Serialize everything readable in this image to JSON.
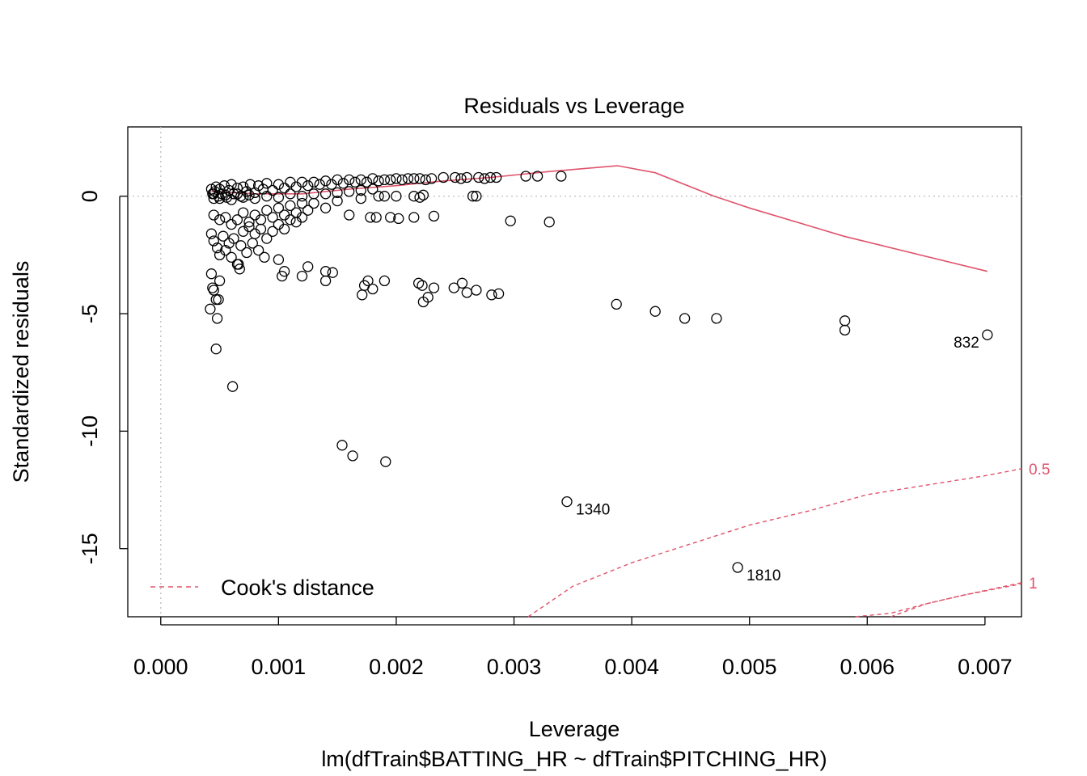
{
  "chart_data": {
    "type": "scatter",
    "title": "Residuals vs Leverage",
    "xlabel": "Leverage",
    "sublabel": "lm(dfTrain$BATTING_HR ~ dfTrain$PITCHING_HR)",
    "ylabel": "Standardized residuals",
    "xlim": [
      -0.00028,
      0.00731
    ],
    "ylim": [
      -17.9,
      2.95
    ],
    "x_ticks": [
      0,
      0.001,
      0.002,
      0.003,
      0.004,
      0.005,
      0.006,
      0.007
    ],
    "x_tick_labels": [
      "0.000",
      "0.001",
      "0.002",
      "0.003",
      "0.004",
      "0.005",
      "0.006",
      "0.007"
    ],
    "y_ticks": [
      0,
      -5,
      -10,
      -15
    ],
    "y_tick_labels": [
      "0",
      "-5",
      "-10",
      "-15"
    ],
    "reference_lines": {
      "h": 0,
      "v": 0
    },
    "legend": {
      "label": "Cook's distance",
      "position": "bottom-left"
    },
    "colors": {
      "smooth": "#DF536B",
      "points": "#000000",
      "reference": "#BEBEBE"
    },
    "points": [
      [
        0.00043,
        0.3
      ],
      [
        0.00044,
        0.1
      ],
      [
        0.00045,
        -0.1
      ],
      [
        0.00046,
        0.2
      ],
      [
        0.00047,
        0.4
      ],
      [
        0.00049,
        0.0
      ],
      [
        0.0005,
        0.3
      ],
      [
        0.00052,
        0.1
      ],
      [
        0.00054,
        0.45
      ],
      [
        0.00056,
        -0.05
      ],
      [
        0.00058,
        0.25
      ],
      [
        0.0006,
        0.5
      ],
      [
        0.00062,
        0.1
      ],
      [
        0.00065,
        0.35
      ],
      [
        0.00068,
        0.0
      ],
      [
        0.0007,
        0.4
      ],
      [
        0.00073,
        0.2
      ],
      [
        0.00076,
        0.5
      ],
      [
        0.0008,
        0.15
      ],
      [
        0.00083,
        0.45
      ],
      [
        0.00087,
        0.3
      ],
      [
        0.0009,
        0.55
      ],
      [
        0.00095,
        0.25
      ],
      [
        0.001,
        0.5
      ],
      [
        0.00105,
        0.35
      ],
      [
        0.0011,
        0.6
      ],
      [
        0.00115,
        0.4
      ],
      [
        0.0012,
        0.6
      ],
      [
        0.00125,
        0.45
      ],
      [
        0.0013,
        0.6
      ],
      [
        0.00135,
        0.5
      ],
      [
        0.0014,
        0.65
      ],
      [
        0.00145,
        0.5
      ],
      [
        0.0015,
        0.7
      ],
      [
        0.00155,
        0.55
      ],
      [
        0.0016,
        0.7
      ],
      [
        0.00165,
        0.6
      ],
      [
        0.0017,
        0.7
      ],
      [
        0.00175,
        0.6
      ],
      [
        0.0018,
        0.75
      ],
      [
        0.00185,
        0.65
      ],
      [
        0.0019,
        0.7
      ],
      [
        0.00195,
        0.7
      ],
      [
        0.002,
        0.75
      ],
      [
        0.00205,
        0.7
      ],
      [
        0.0021,
        0.75
      ],
      [
        0.00215,
        0.75
      ],
      [
        0.0022,
        0.75
      ],
      [
        0.00225,
        0.7
      ],
      [
        0.0023,
        0.75
      ],
      [
        0.0024,
        0.8
      ],
      [
        0.0025,
        0.8
      ],
      [
        0.00255,
        0.75
      ],
      [
        0.0026,
        0.8
      ],
      [
        0.0027,
        0.8
      ],
      [
        0.00275,
        0.75
      ],
      [
        0.0028,
        0.8
      ],
      [
        0.00285,
        0.8
      ],
      [
        0.0031,
        0.85
      ],
      [
        0.0032,
        0.85
      ],
      [
        0.0034,
        0.85
      ],
      [
        0.00045,
        0.1
      ],
      [
        0.0005,
        -0.1
      ],
      [
        0.00055,
        0.05
      ],
      [
        0.0006,
        -0.15
      ],
      [
        0.00065,
        0.1
      ],
      [
        0.0007,
        -0.05
      ],
      [
        0.00075,
        0.05
      ],
      [
        0.0008,
        -0.1
      ],
      [
        0.0009,
        0.0
      ],
      [
        0.001,
        -0.05
      ],
      [
        0.0011,
        0.1
      ],
      [
        0.0012,
        0.0
      ],
      [
        0.0013,
        0.1
      ],
      [
        0.0014,
        0.1
      ],
      [
        0.0015,
        0.15
      ],
      [
        0.0016,
        0.2
      ],
      [
        0.0017,
        0.25
      ],
      [
        0.0018,
        0.3
      ],
      [
        0.00185,
        0.0
      ],
      [
        0.0019,
        0.0
      ],
      [
        0.002,
        0.0
      ],
      [
        0.00215,
        0.0
      ],
      [
        0.0022,
        -0.05
      ],
      [
        0.00223,
        0.05
      ],
      [
        0.00265,
        0.0
      ],
      [
        0.00268,
        0.0
      ],
      [
        0.00045,
        -0.8
      ],
      [
        0.0005,
        -1.0
      ],
      [
        0.00055,
        -0.9
      ],
      [
        0.0006,
        -1.2
      ],
      [
        0.00065,
        -1.0
      ],
      [
        0.0007,
        -0.7
      ],
      [
        0.00075,
        -1.1
      ],
      [
        0.0008,
        -0.8
      ],
      [
        0.00085,
        -1.0
      ],
      [
        0.0009,
        -0.6
      ],
      [
        0.00095,
        -0.9
      ],
      [
        0.001,
        -0.5
      ],
      [
        0.00105,
        -0.8
      ],
      [
        0.0011,
        -0.4
      ],
      [
        0.00115,
        -0.7
      ],
      [
        0.0012,
        -0.3
      ],
      [
        0.00125,
        -0.6
      ],
      [
        0.0013,
        -0.3
      ],
      [
        0.0014,
        -0.5
      ],
      [
        0.0015,
        -0.2
      ],
      [
        0.0016,
        -0.8
      ],
      [
        0.0017,
        -0.1
      ],
      [
        0.00178,
        -0.9
      ],
      [
        0.00183,
        -0.9
      ],
      [
        0.00195,
        -0.9
      ],
      [
        0.00202,
        -0.95
      ],
      [
        0.00215,
        -0.9
      ],
      [
        0.00232,
        -0.85
      ],
      [
        0.00297,
        -1.05
      ],
      [
        0.0033,
        -1.1
      ],
      [
        0.00043,
        -1.6
      ],
      [
        0.00045,
        -1.9
      ],
      [
        0.00048,
        -2.2
      ],
      [
        0.0005,
        -2.5
      ],
      [
        0.00053,
        -1.7
      ],
      [
        0.00055,
        -2.3
      ],
      [
        0.00058,
        -2.0
      ],
      [
        0.0006,
        -2.6
      ],
      [
        0.00062,
        -1.8
      ],
      [
        0.00065,
        -2.9
      ],
      [
        0.00068,
        -2.1
      ],
      [
        0.0007,
        -1.5
      ],
      [
        0.00073,
        -2.4
      ],
      [
        0.00075,
        -1.3
      ],
      [
        0.00078,
        -2.0
      ],
      [
        0.0008,
        -1.6
      ],
      [
        0.00083,
        -2.3
      ],
      [
        0.00085,
        -1.4
      ],
      [
        0.00088,
        -2.6
      ],
      [
        0.0009,
        -1.8
      ],
      [
        0.00095,
        -1.5
      ],
      [
        0.001,
        -1.2
      ],
      [
        0.00105,
        -1.4
      ],
      [
        0.0011,
        -1.0
      ],
      [
        0.00115,
        -1.1
      ],
      [
        0.0012,
        -0.9
      ],
      [
        0.00043,
        -3.3
      ],
      [
        0.00044,
        -3.9
      ],
      [
        0.00045,
        -4.0
      ],
      [
        0.00047,
        -4.4
      ],
      [
        0.00049,
        -4.4
      ],
      [
        0.0005,
        -3.6
      ],
      [
        0.00042,
        -4.8
      ],
      [
        0.00048,
        -5.2
      ],
      [
        0.00047,
        -6.5
      ],
      [
        0.00061,
        -8.1
      ],
      [
        0.00067,
        -3.1
      ],
      [
        0.00066,
        -2.9
      ],
      [
        0.001,
        -2.7
      ],
      [
        0.00103,
        -3.4
      ],
      [
        0.00105,
        -3.2
      ],
      [
        0.0012,
        -3.4
      ],
      [
        0.00125,
        -3.0
      ],
      [
        0.0014,
        -3.6
      ],
      [
        0.0014,
        -3.2
      ],
      [
        0.00146,
        -3.25
      ],
      [
        0.00171,
        -4.2
      ],
      [
        0.00173,
        -3.8
      ],
      [
        0.00176,
        -3.6
      ],
      [
        0.0018,
        -3.95
      ],
      [
        0.0019,
        -3.6
      ],
      [
        0.00219,
        -3.7
      ],
      [
        0.00222,
        -3.8
      ],
      [
        0.00223,
        -4.5
      ],
      [
        0.00227,
        -4.3
      ],
      [
        0.00232,
        -3.9
      ],
      [
        0.00249,
        -3.9
      ],
      [
        0.00256,
        -3.7
      ],
      [
        0.0026,
        -4.1
      ],
      [
        0.00268,
        -4.0
      ],
      [
        0.00281,
        -4.2
      ],
      [
        0.00287,
        -4.15
      ],
      [
        0.00387,
        -4.6
      ],
      [
        0.0042,
        -4.9
      ],
      [
        0.00445,
        -5.2
      ],
      [
        0.00472,
        -5.2
      ],
      [
        0.00581,
        -5.3
      ],
      [
        0.00581,
        -5.7
      ],
      [
        0.00702,
        -5.9
      ],
      [
        0.00154,
        -10.6
      ],
      [
        0.00163,
        -11.05
      ],
      [
        0.00191,
        -11.3
      ],
      [
        0.00345,
        -13.0
      ],
      [
        0.0049,
        -15.8
      ]
    ],
    "point_labels": [
      {
        "x": 0.00702,
        "y": -5.9,
        "text": "832",
        "side": "left"
      },
      {
        "x": 0.00345,
        "y": -13.0,
        "text": "1340",
        "side": "right"
      },
      {
        "x": 0.0049,
        "y": -15.8,
        "text": "1810",
        "side": "right"
      }
    ],
    "smooth_line": [
      [
        0.00043,
        0.2
      ],
      [
        0.0008,
        0.1
      ],
      [
        0.0012,
        0.1
      ],
      [
        0.0016,
        0.3
      ],
      [
        0.002,
        0.45
      ],
      [
        0.0024,
        0.65
      ],
      [
        0.0028,
        0.8
      ],
      [
        0.0033,
        1.05
      ],
      [
        0.00388,
        1.3
      ],
      [
        0.0042,
        1.0
      ],
      [
        0.0047,
        0.0
      ],
      [
        0.005,
        -0.5
      ],
      [
        0.0058,
        -1.7
      ],
      [
        0.00702,
        -3.2
      ]
    ],
    "cook_contours": [
      {
        "level": 0.5,
        "label": "0.5",
        "points": [
          [
            0.0059,
            -17.9
          ],
          [
            0.0062,
            -17.75
          ],
          [
            0.0065,
            -17.35
          ],
          [
            0.0068,
            -17.0
          ],
          [
            0.00731,
            -16.5
          ]
        ]
      },
      {
        "level": 0.5,
        "label": "",
        "points": [
          [
            0.00312,
            -17.9
          ],
          [
            0.0035,
            -16.6
          ],
          [
            0.004,
            -15.6
          ],
          [
            0.0045,
            -14.8
          ],
          [
            0.005,
            -14.0
          ],
          [
            0.0055,
            -13.4
          ],
          [
            0.006,
            -12.7
          ],
          [
            0.0065,
            -12.3
          ],
          [
            0.007,
            -11.9
          ],
          [
            0.00731,
            -11.6
          ]
        ]
      },
      {
        "level": 1,
        "label": "1",
        "points": [
          [
            0.0062,
            -17.9
          ],
          [
            0.0065,
            -17.35
          ],
          [
            0.0068,
            -17.0
          ],
          [
            0.00731,
            -16.45
          ]
        ]
      }
    ],
    "cook_label_positions": [
      {
        "text": "0.5",
        "y": -11.6
      },
      {
        "text": "1",
        "y": -16.45
      }
    ]
  }
}
